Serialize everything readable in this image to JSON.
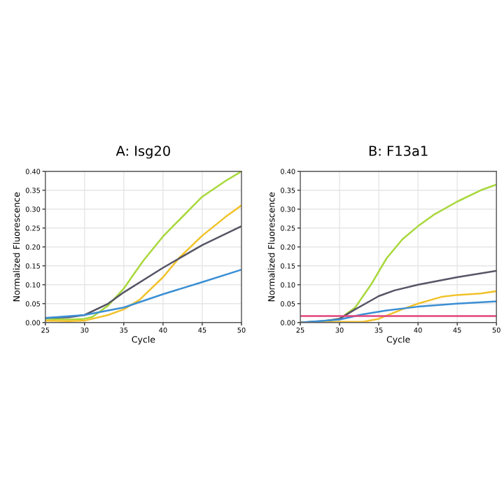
{
  "chart_data": [
    {
      "type": "line",
      "title": "A: Isg20",
      "xlabel": "Cycle",
      "ylabel": "Normalized Fluorescence",
      "grid": true,
      "marker": "none",
      "line_style": "solid",
      "xlim": [
        25,
        50
      ],
      "xticks": [
        25,
        30,
        35,
        40,
        45,
        50
      ],
      "ylim": [
        0,
        0.4
      ],
      "yticks": [
        {
          "value": 0,
          "label": "0.00"
        },
        {
          "value": 0.05,
          "label": "0.05"
        },
        {
          "value": 0.1,
          "label": "0.10"
        },
        {
          "value": 0.15,
          "label": "0.15"
        },
        {
          "value": 0.2,
          "label": "0.20"
        },
        {
          "value": 0.25,
          "label": "0.25"
        },
        {
          "value": 0.3,
          "label": "0.30"
        },
        {
          "value": 0.35,
          "label": "0.35"
        },
        {
          "value": 0.4,
          "label": "0.40"
        }
      ],
      "series": [
        {
          "color": "#a8d83c",
          "x": [
            25,
            28,
            30,
            31,
            33,
            35,
            36,
            37.5,
            40,
            42,
            45,
            48,
            50
          ],
          "values": [
            0.01,
            0.008,
            0.01,
            0.015,
            0.045,
            0.09,
            0.12,
            0.164,
            0.228,
            0.27,
            0.333,
            0.375,
            0.4
          ]
        },
        {
          "color": "#f2c22a",
          "x": [
            25,
            28,
            30,
            33,
            35,
            37,
            40,
            42,
            45,
            48,
            50
          ],
          "values": [
            0.005,
            0.004,
            0.005,
            0.02,
            0.035,
            0.06,
            0.12,
            0.17,
            0.23,
            0.28,
            0.31
          ]
        },
        {
          "color": "#555566",
          "x": [
            25,
            28,
            30,
            33,
            35,
            40,
            45,
            50
          ],
          "values": [
            0.012,
            0.014,
            0.02,
            0.05,
            0.08,
            0.145,
            0.205,
            0.255
          ]
        },
        {
          "color": "#3b8fd4",
          "x": [
            25,
            30,
            35,
            40,
            45,
            50
          ],
          "values": [
            0.012,
            0.02,
            0.04,
            0.075,
            0.107,
            0.14
          ]
        }
      ]
    },
    {
      "type": "line",
      "title": "B: F13a1",
      "xlabel": "Cycle",
      "ylabel": "Normalized Fluorescence",
      "grid": true,
      "marker": "none",
      "line_style": "solid",
      "xlim": [
        25,
        50
      ],
      "xticks": [
        25,
        30,
        35,
        40,
        45,
        50
      ],
      "ylim": [
        0,
        0.4
      ],
      "yticks": [
        {
          "value": 0,
          "label": "0.00"
        },
        {
          "value": 0.05,
          "label": "0.05"
        },
        {
          "value": 0.1,
          "label": "0.10"
        },
        {
          "value": 0.15,
          "label": "0.15"
        },
        {
          "value": 0.2,
          "label": "0.20"
        },
        {
          "value": 0.25,
          "label": "0.25"
        },
        {
          "value": 0.3,
          "label": "0.30"
        },
        {
          "value": 0.35,
          "label": "0.35"
        },
        {
          "value": 0.4,
          "label": "0.40"
        }
      ],
      "series": [
        {
          "color": "#a8d83c",
          "x": [
            25,
            28,
            30,
            32,
            34,
            36,
            38,
            40,
            42,
            45,
            48,
            50
          ],
          "values": [
            0,
            0.004,
            0.01,
            0.04,
            0.1,
            0.17,
            0.22,
            0.255,
            0.285,
            0.32,
            0.35,
            0.365
          ]
        },
        {
          "color": "#555566",
          "x": [
            25,
            28,
            30,
            32,
            35,
            37,
            40,
            45,
            50
          ],
          "values": [
            0,
            0.004,
            0.01,
            0.035,
            0.07,
            0.085,
            0.1,
            0.12,
            0.137
          ]
        },
        {
          "color": "#f2c22a",
          "x": [
            25,
            30,
            33,
            35,
            38,
            40,
            43,
            45,
            48,
            50
          ],
          "values": [
            0,
            0.002,
            0.002,
            0.01,
            0.035,
            0.05,
            0.068,
            0.073,
            0.077,
            0.083
          ]
        },
        {
          "color": "#3b8fd4",
          "x": [
            25,
            30,
            33,
            36,
            40,
            45,
            50
          ],
          "values": [
            0,
            0.008,
            0.022,
            0.032,
            0.042,
            0.05,
            0.056
          ]
        },
        {
          "color": "#e0457b",
          "x": [
            25,
            50
          ],
          "values": [
            0.017,
            0.017
          ]
        }
      ]
    }
  ]
}
